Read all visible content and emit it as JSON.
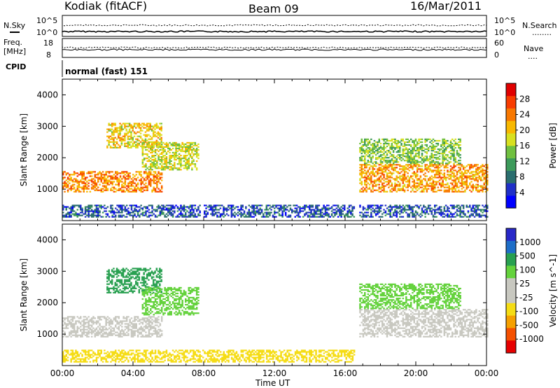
{
  "header": {
    "station": "Kodiak (fitACF)",
    "beam": "Beam 09",
    "date": "16/Mar/2011"
  },
  "strip_labels": {
    "nsky": "N.Sky",
    "nsearch": "N.Search",
    "nsearch_marker": "........",
    "freq_line1": "Freq.",
    "freq_line2": "[MHz]",
    "nave": "Nave",
    "nave_marker": "....",
    "cpid": "CPID",
    "cpid_value": "normal (fast) 151"
  },
  "strip_ticks": {
    "noise_left": [
      "10^5",
      "10^0"
    ],
    "noise_right": [
      "10^5",
      "10^0"
    ],
    "freq_left": [
      "18",
      "8"
    ],
    "nave_right": [
      "60",
      "0"
    ]
  },
  "colors": {
    "power_scale": [
      "#0000ff",
      "#2030c8",
      "#2a6e6e",
      "#3c9a5a",
      "#70c040",
      "#d8e020",
      "#f8b800",
      "#f87800",
      "#f83c00",
      "#e00000"
    ],
    "velocity_scale": [
      "#2828c8",
      "#1e6ec8",
      "#28a050",
      "#64d23c",
      "#c8c8c0",
      "#c8c8c0",
      "#f5dc14",
      "#f5a000",
      "#f55000",
      "#e60000"
    ]
  },
  "chart_data": [
    {
      "type": "heatmap",
      "panel": "power",
      "ylabel": "Slant Range [km]",
      "xlabel": "Time UT",
      "xlim": [
        "00:00",
        "24:00"
      ],
      "ylim": [
        0,
        4500
      ],
      "x_ticks": [
        "00:00",
        "04:00",
        "08:00",
        "12:00",
        "16:00",
        "20:00",
        "00:00"
      ],
      "y_ticks": [
        1000,
        2000,
        3000,
        4000
      ],
      "colorbar_label": "Power [dB]",
      "colorbar_ticks": [
        "4",
        "8",
        "12",
        "16",
        "20",
        "24",
        "28"
      ],
      "colorbar_range": [
        0,
        30
      ],
      "regions": [
        {
          "t_start": 0.0,
          "t_end": 5.6,
          "range_low": 900,
          "range_high": 1550,
          "value": 22
        },
        {
          "t_start": 2.5,
          "t_end": 5.6,
          "range_low": 2300,
          "range_high": 3100,
          "value": 18
        },
        {
          "t_start": 4.5,
          "t_end": 7.7,
          "range_low": 1600,
          "range_high": 2500,
          "value": 16
        },
        {
          "t_start": 0.0,
          "t_end": 7.8,
          "range_low": 100,
          "range_high": 500,
          "value": 6
        },
        {
          "t_start": 8.0,
          "t_end": 16.5,
          "range_low": 100,
          "range_high": 500,
          "value": 6
        },
        {
          "t_start": 16.8,
          "t_end": 24.0,
          "range_low": 900,
          "range_high": 1800,
          "value": 21
        },
        {
          "t_start": 16.8,
          "t_end": 22.5,
          "range_low": 1800,
          "range_high": 2600,
          "value": 14
        },
        {
          "t_start": 16.8,
          "t_end": 24.0,
          "range_low": 100,
          "range_high": 500,
          "value": 6
        }
      ]
    },
    {
      "type": "heatmap",
      "panel": "velocity",
      "ylabel": "Slant Range [km]",
      "xlabel": "Time UT",
      "xlim": [
        "00:00",
        "24:00"
      ],
      "ylim": [
        0,
        4500
      ],
      "x_ticks": [
        "00:00",
        "04:00",
        "08:00",
        "12:00",
        "16:00",
        "20:00",
        "00:00"
      ],
      "y_ticks": [
        1000,
        2000,
        3000,
        4000
      ],
      "colorbar_label": "Velocity [m s^-1]",
      "colorbar_ticks": [
        "1000",
        "500",
        "100",
        "25",
        "-25",
        "-100",
        "-500",
        "-1000"
      ],
      "regions": [
        {
          "t_start": 0.0,
          "t_end": 5.6,
          "range_low": 900,
          "range_high": 1550,
          "value": 0
        },
        {
          "t_start": 2.5,
          "t_end": 5.6,
          "range_low": 2300,
          "range_high": 3100,
          "value": 150
        },
        {
          "t_start": 4.5,
          "t_end": 7.7,
          "range_low": 1600,
          "range_high": 2500,
          "value": 40
        },
        {
          "t_start": 0.0,
          "t_end": 16.5,
          "range_low": 100,
          "range_high": 500,
          "value": -80
        },
        {
          "t_start": 16.8,
          "t_end": 24.0,
          "range_low": 900,
          "range_high": 1800,
          "value": 0
        },
        {
          "t_start": 16.8,
          "t_end": 22.5,
          "range_low": 1800,
          "range_high": 2600,
          "value": 60
        }
      ]
    }
  ]
}
